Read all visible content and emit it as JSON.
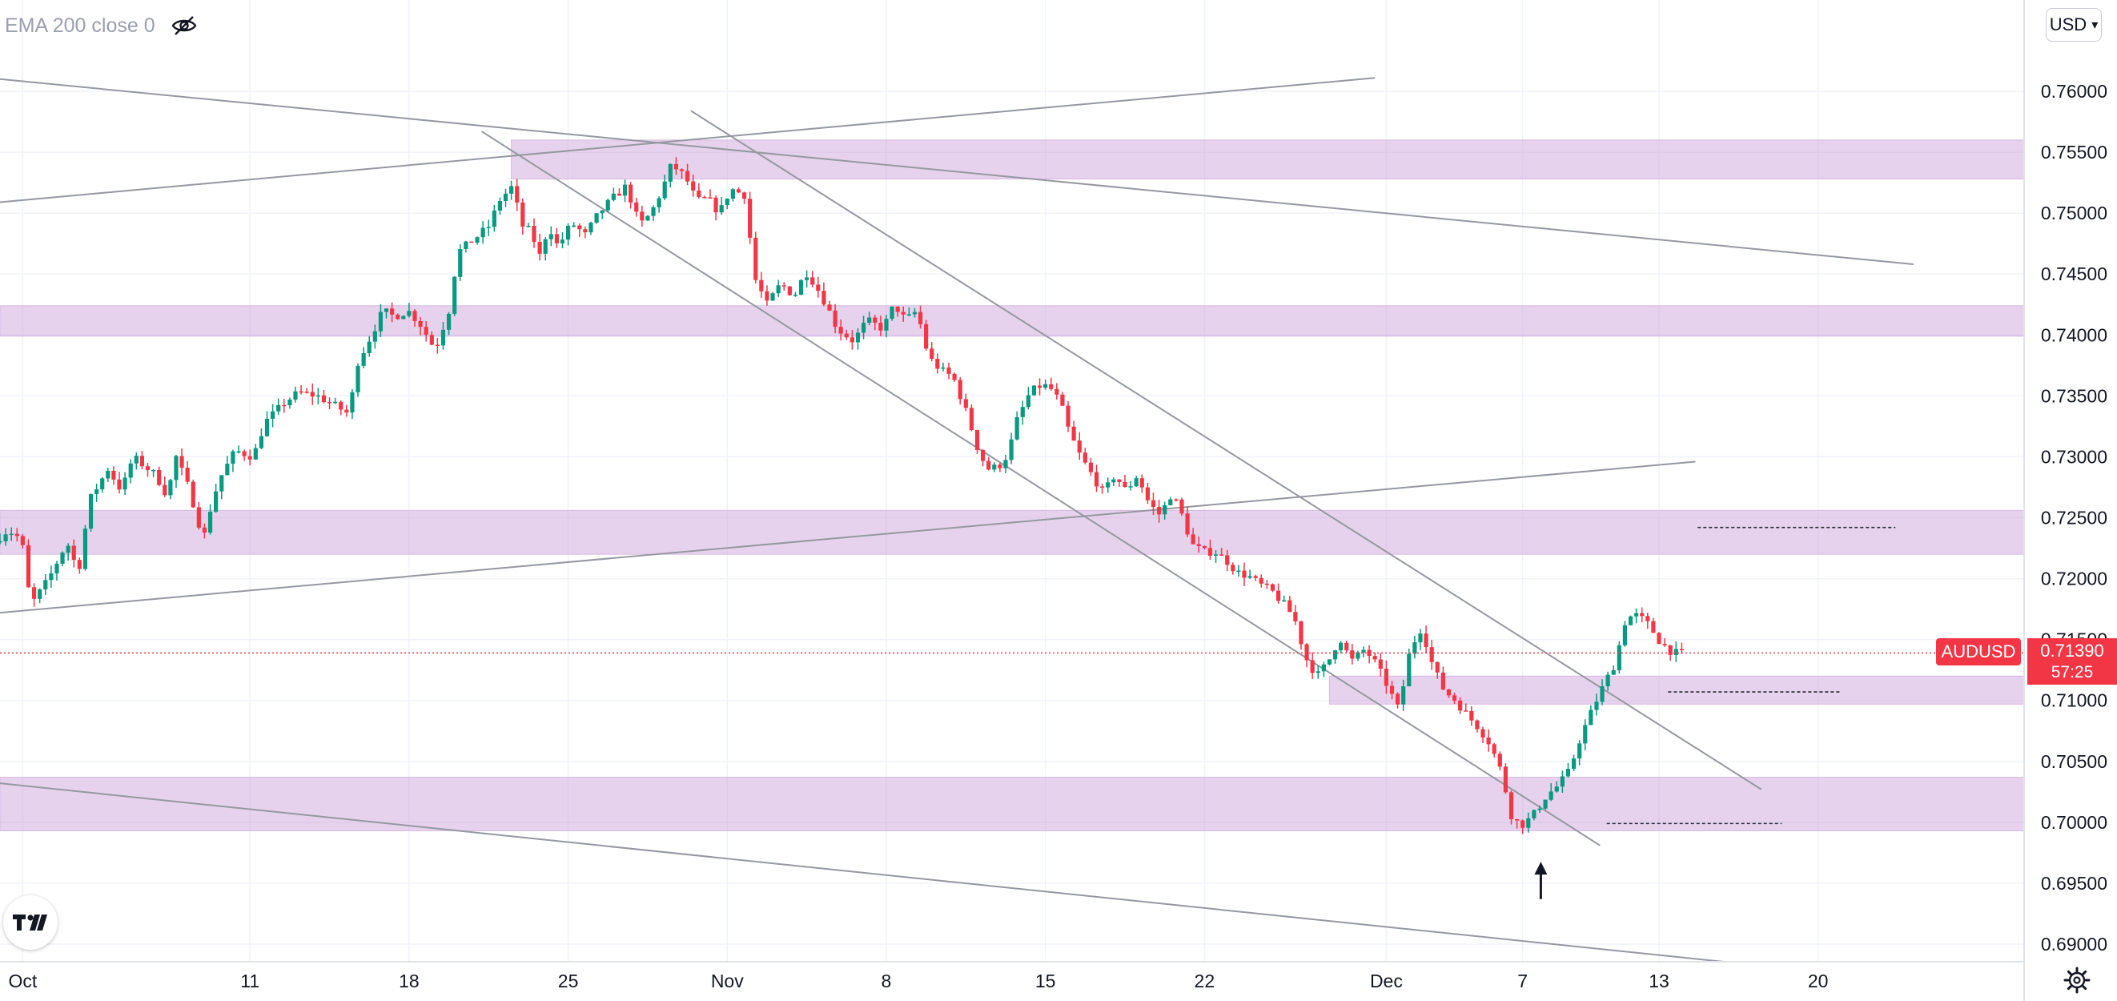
{
  "indicator": {
    "label": "EMA 200 close 0"
  },
  "currency": {
    "label": "USD"
  },
  "last_price": {
    "symbol": "AUDUSD",
    "price": "0.71390",
    "countdown": "57:25"
  },
  "chart_data": {
    "type": "candlestick",
    "symbol": "AUDUSD",
    "ylim": [
      0.688,
      0.769
    ],
    "y_ticks": [
      "0.76000",
      "0.75500",
      "0.75000",
      "0.74500",
      "0.74000",
      "0.73500",
      "0.73000",
      "0.72500",
      "0.72000",
      "0.71500",
      "0.71000",
      "0.70500",
      "0.70000",
      "0.69500",
      "0.69000"
    ],
    "x_ticks": [
      "Oct",
      "11",
      "18",
      "25",
      "Nov",
      "8",
      "15",
      "22",
      "Dec",
      "7",
      "13",
      "20"
    ],
    "current_price": 0.7139,
    "zones": [
      {
        "y1": 0.7528,
        "y2": 0.756,
        "start_day": 22.5
      },
      {
        "y1": 0.7399,
        "y2": 0.7424,
        "start_day": 0
      },
      {
        "y1": 0.722,
        "y2": 0.7256,
        "start_day": 0
      },
      {
        "y1": 0.7097,
        "y2": 0.712,
        "start_day": 58.5
      },
      {
        "y1": 0.6993,
        "y2": 0.7037,
        "start_day": 0
      }
    ],
    "trendlines": [
      {
        "x1": 0,
        "y1": 0.761,
        "x2": 84.2,
        "y2": 0.7458
      },
      {
        "x1": 0,
        "y1": 0.7509,
        "x2": 60.5,
        "y2": 0.7611
      },
      {
        "x1": 21.2,
        "y1": 0.7567,
        "x2": 70.4,
        "y2": 0.6981
      },
      {
        "x1": 30.4,
        "y1": 0.7584,
        "x2": 77.5,
        "y2": 0.7027
      },
      {
        "x1": 0,
        "y1": 0.7172,
        "x2": 74.6,
        "y2": 0.7296
      },
      {
        "x1": 0,
        "y1": 0.7032,
        "x2": 78.7,
        "y2": 0.688
      }
    ],
    "dashed_levels": [
      {
        "x1": 74.7,
        "x2": 83.4,
        "y": 0.7242
      },
      {
        "x1": 73.4,
        "x2": 81.0,
        "y": 0.7107
      },
      {
        "x1": 70.7,
        "x2": 78.4,
        "y": 0.6999
      }
    ],
    "arrow_annotation": {
      "day": 67.8,
      "price_tip": 0.6965,
      "price_base": 0.6937
    },
    "path_points": [
      [
        0,
        0.723
      ],
      [
        0.6,
        0.724
      ],
      [
        1.2,
        0.7232
      ],
      [
        1.6,
        0.7178
      ],
      [
        2.4,
        0.72
      ],
      [
        3.2,
        0.723
      ],
      [
        3.7,
        0.7205
      ],
      [
        4.2,
        0.7265
      ],
      [
        5.0,
        0.729
      ],
      [
        5.6,
        0.7272
      ],
      [
        6.1,
        0.73
      ],
      [
        7.1,
        0.7285
      ],
      [
        7.6,
        0.7268
      ],
      [
        8.0,
        0.73
      ],
      [
        8.6,
        0.7272
      ],
      [
        9.2,
        0.7232
      ],
      [
        9.6,
        0.7265
      ],
      [
        10.0,
        0.7285
      ],
      [
        10.6,
        0.7305
      ],
      [
        11.4,
        0.73
      ],
      [
        11.9,
        0.7328
      ],
      [
        12.8,
        0.7345
      ],
      [
        13.4,
        0.7353
      ],
      [
        14.2,
        0.735
      ],
      [
        15.0,
        0.7342
      ],
      [
        15.6,
        0.7335
      ],
      [
        16.0,
        0.7378
      ],
      [
        16.6,
        0.74
      ],
      [
        17.1,
        0.742
      ],
      [
        17.6,
        0.7415
      ],
      [
        18.2,
        0.742
      ],
      [
        18.7,
        0.741
      ],
      [
        19.4,
        0.7388
      ],
      [
        20.0,
        0.742
      ],
      [
        20.4,
        0.7468
      ],
      [
        21.2,
        0.748
      ],
      [
        21.8,
        0.749
      ],
      [
        22.2,
        0.751
      ],
      [
        22.8,
        0.7522
      ],
      [
        23.2,
        0.749
      ],
      [
        23.6,
        0.7485
      ],
      [
        24.0,
        0.7465
      ],
      [
        24.4,
        0.749
      ],
      [
        24.8,
        0.7472
      ],
      [
        25.4,
        0.7492
      ],
      [
        26.0,
        0.7482
      ],
      [
        26.6,
        0.75
      ],
      [
        27.2,
        0.7512
      ],
      [
        27.8,
        0.7522
      ],
      [
        28.4,
        0.749
      ],
      [
        28.9,
        0.75
      ],
      [
        29.4,
        0.752
      ],
      [
        29.8,
        0.754
      ],
      [
        30.4,
        0.753
      ],
      [
        30.9,
        0.751
      ],
      [
        31.4,
        0.7512
      ],
      [
        31.9,
        0.75
      ],
      [
        32.4,
        0.752
      ],
      [
        33.0,
        0.7515
      ],
      [
        33.5,
        0.7445
      ],
      [
        34.0,
        0.7425
      ],
      [
        34.6,
        0.7442
      ],
      [
        35.2,
        0.7432
      ],
      [
        35.7,
        0.7452
      ],
      [
        36.1,
        0.7442
      ],
      [
        36.6,
        0.7425
      ],
      [
        37.1,
        0.7405
      ],
      [
        37.8,
        0.7395
      ],
      [
        38.4,
        0.7412
      ],
      [
        39.1,
        0.7405
      ],
      [
        39.6,
        0.7425
      ],
      [
        40.1,
        0.7412
      ],
      [
        40.6,
        0.742
      ],
      [
        41.1,
        0.7382
      ],
      [
        41.6,
        0.7372
      ],
      [
        42.2,
        0.7365
      ],
      [
        42.8,
        0.7335
      ],
      [
        43.3,
        0.7305
      ],
      [
        43.7,
        0.729
      ],
      [
        44.2,
        0.7292
      ],
      [
        44.6,
        0.7302
      ],
      [
        45.0,
        0.733
      ],
      [
        45.5,
        0.735
      ],
      [
        45.9,
        0.7358
      ],
      [
        46.4,
        0.7358
      ],
      [
        46.9,
        0.7345
      ],
      [
        47.3,
        0.732
      ],
      [
        47.8,
        0.73
      ],
      [
        48.3,
        0.7285
      ],
      [
        48.8,
        0.727
      ],
      [
        49.3,
        0.7285
      ],
      [
        49.8,
        0.7272
      ],
      [
        50.3,
        0.7285
      ],
      [
        50.8,
        0.7262
      ],
      [
        51.3,
        0.7252
      ],
      [
        51.8,
        0.727
      ],
      [
        52.2,
        0.7255
      ],
      [
        52.7,
        0.7228
      ],
      [
        53.2,
        0.7222
      ],
      [
        53.7,
        0.7222
      ],
      [
        54.2,
        0.7215
      ],
      [
        54.7,
        0.7205
      ],
      [
        55.2,
        0.7202
      ],
      [
        55.7,
        0.7195
      ],
      [
        56.2,
        0.719
      ],
      [
        56.7,
        0.718
      ],
      [
        57.2,
        0.7168
      ],
      [
        57.7,
        0.7135
      ],
      [
        58.2,
        0.712
      ],
      [
        58.7,
        0.7132
      ],
      [
        59.2,
        0.7152
      ],
      [
        59.7,
        0.7132
      ],
      [
        60.3,
        0.7142
      ],
      [
        60.8,
        0.713
      ],
      [
        61.3,
        0.7112
      ],
      [
        61.8,
        0.7092
      ],
      [
        62.3,
        0.7142
      ],
      [
        62.8,
        0.716
      ],
      [
        63.3,
        0.7128
      ],
      [
        63.8,
        0.7108
      ],
      [
        64.3,
        0.71
      ],
      [
        64.8,
        0.7088
      ],
      [
        65.3,
        0.7078
      ],
      [
        65.8,
        0.7065
      ],
      [
        66.3,
        0.7042
      ],
      [
        66.8,
        0.7002
      ],
      [
        67.3,
        0.6998
      ],
      [
        67.8,
        0.7008
      ],
      [
        68.3,
        0.7022
      ],
      [
        68.8,
        0.703
      ],
      [
        69.3,
        0.7042
      ],
      [
        69.8,
        0.707
      ],
      [
        70.3,
        0.7092
      ],
      [
        70.8,
        0.7112
      ],
      [
        71.3,
        0.713
      ],
      [
        71.8,
        0.7168
      ],
      [
        72.3,
        0.717
      ],
      [
        72.8,
        0.7162
      ],
      [
        73.3,
        0.7148
      ],
      [
        73.8,
        0.714
      ],
      [
        74.0,
        0.7139
      ]
    ]
  }
}
